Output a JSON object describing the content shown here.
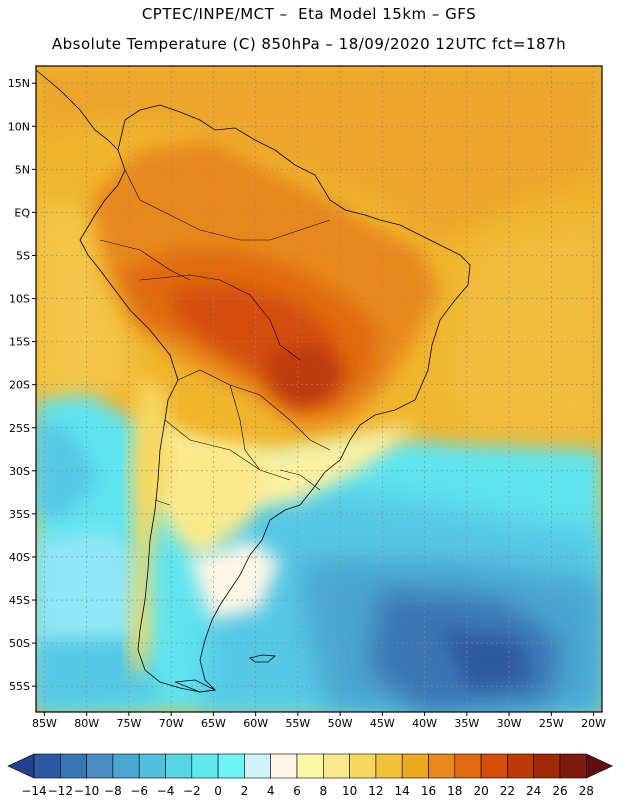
{
  "header": {
    "line1": "CPTEC/INPE/MCT –  Eta Model 15km – GFS",
    "line2": "Absolute Temperature (C) 850hPa – 18/09/2020 12UTC fct=187h"
  },
  "map": {
    "lat_labels": [
      "15N",
      "10N",
      "5N",
      "EQ",
      "5S",
      "10S",
      "15S",
      "20S",
      "25S",
      "30S",
      "35S",
      "40S",
      "45S",
      "50S",
      "55S"
    ],
    "lat_values": [
      15,
      10,
      5,
      0,
      -5,
      -10,
      -15,
      -20,
      -25,
      -30,
      -35,
      -40,
      -45,
      -50,
      -55
    ],
    "lon_labels": [
      "85W",
      "80W",
      "75W",
      "70W",
      "65W",
      "60W",
      "55W",
      "50W",
      "45W",
      "40W",
      "35W",
      "30W",
      "25W",
      "20W"
    ],
    "lon_values": [
      -85,
      -80,
      -75,
      -70,
      -65,
      -60,
      -55,
      -50,
      -45,
      -40,
      -35,
      -30,
      -25,
      -20
    ],
    "lat_range": [
      -58,
      17
    ],
    "lon_range": [
      -86,
      -19
    ]
  },
  "colorbar": {
    "labels": [
      "-14",
      "-12",
      "-10",
      "-8",
      "-6",
      "-4",
      "-2",
      "0",
      "2",
      "4",
      "6",
      "8",
      "10",
      "12",
      "14",
      "16",
      "18",
      "20",
      "22",
      "24",
      "26",
      "28"
    ],
    "colors": [
      "#233f8e",
      "#2d5aa2",
      "#3a75b6",
      "#4a8ec4",
      "#4aa6d0",
      "#53bfdf",
      "#55d6e8",
      "#5ee8f0",
      "#6ef4f8",
      "#cff3fb",
      "#fff7e6",
      "#fdf7a6",
      "#fbe98a",
      "#f7d860",
      "#f2c23a",
      "#eeaa1e",
      "#e8881a",
      "#e06a10",
      "#d54e0c",
      "#bf3a08",
      "#9f2a08",
      "#7d1c0c",
      "#5e1010"
    ]
  }
}
